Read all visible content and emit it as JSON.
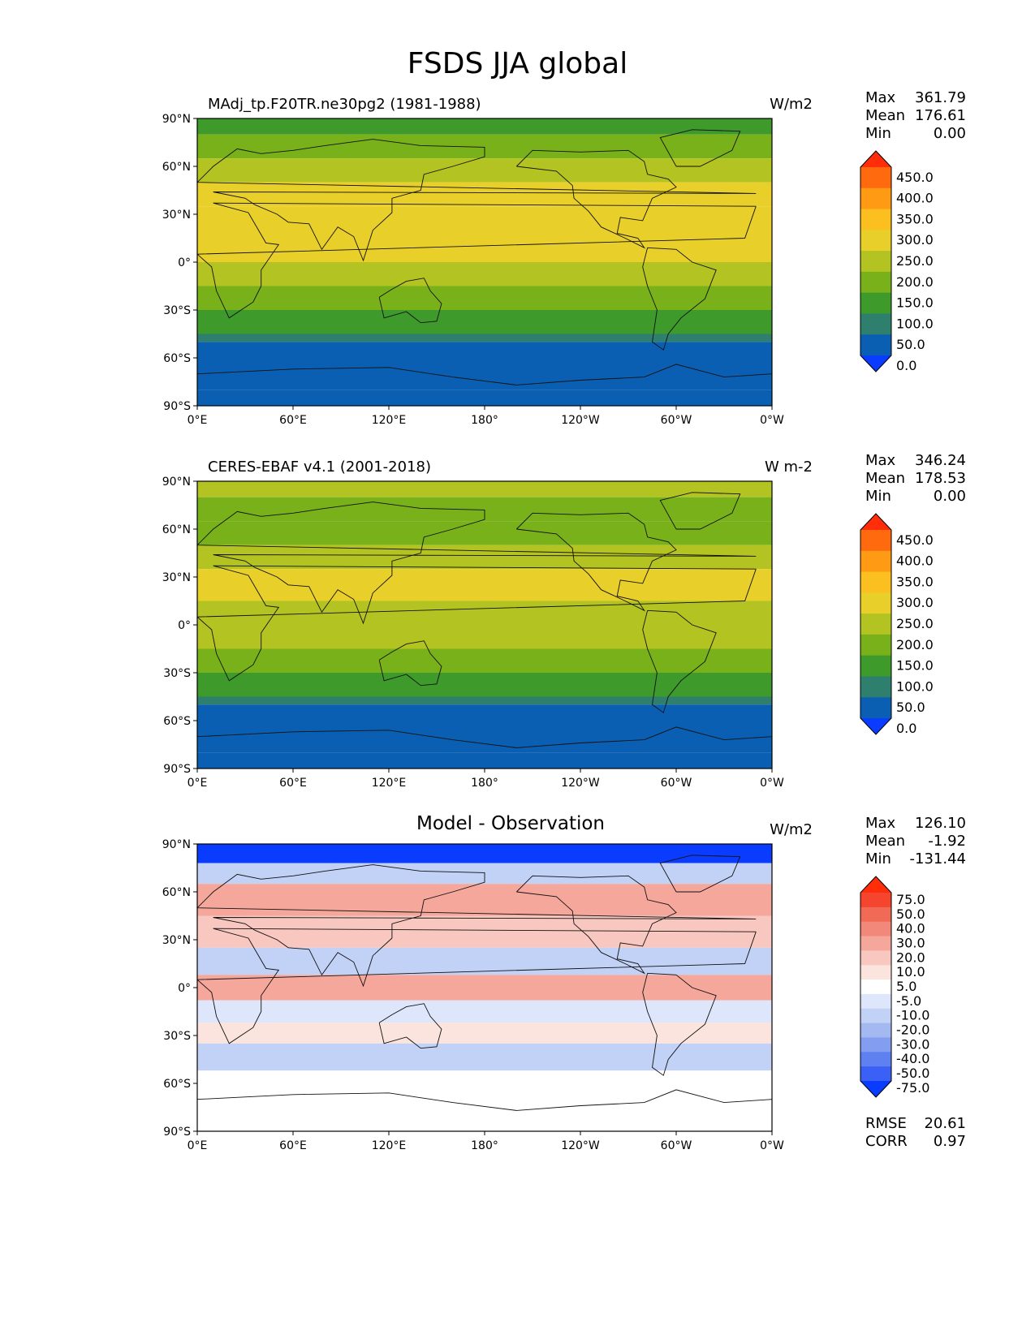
{
  "title": "FSDS JJA global",
  "axes": {
    "lat_ticks": [
      "90°N",
      "60°N",
      "30°N",
      "0°",
      "30°S",
      "60°S",
      "90°S"
    ],
    "lon_ticks": [
      "0°E",
      "60°E",
      "120°E",
      "180°",
      "120°W",
      "60°W",
      "0°W"
    ]
  },
  "panels": [
    {
      "left_title": "MAdj_tp.F20TR.ne30pg2 (1981-1988)",
      "center_title": "",
      "units": "W/m2",
      "stats": [
        {
          "label": "Max",
          "value": "361.79"
        },
        {
          "label": "Mean",
          "value": "176.61"
        },
        {
          "label": "Min",
          "value": "0.00"
        }
      ],
      "colorbar": {
        "levels": [
          "450.0",
          "400.0",
          "350.0",
          "300.0",
          "250.0",
          "200.0",
          "150.0",
          "100.0",
          "50.0",
          "0.0"
        ],
        "colors": [
          "#ff2d0a",
          "#ff6a0e",
          "#ff9a14",
          "#fbbf1f",
          "#e9cf2a",
          "#b3c321",
          "#78b11a",
          "#3e9a2a",
          "#2e7f6e",
          "#0a5fb2",
          "#0a3cff"
        ]
      }
    },
    {
      "left_title": "CERES-EBAF v4.1 (2001-2018)",
      "center_title": "",
      "units": "W m-2",
      "stats": [
        {
          "label": "Max",
          "value": "346.24"
        },
        {
          "label": "Mean",
          "value": "178.53"
        },
        {
          "label": "Min",
          "value": "0.00"
        }
      ],
      "colorbar": {
        "levels": [
          "450.0",
          "400.0",
          "350.0",
          "300.0",
          "250.0",
          "200.0",
          "150.0",
          "100.0",
          "50.0",
          "0.0"
        ],
        "colors": [
          "#ff2d0a",
          "#ff6a0e",
          "#ff9a14",
          "#fbbf1f",
          "#e9cf2a",
          "#b3c321",
          "#78b11a",
          "#3e9a2a",
          "#2e7f6e",
          "#0a5fb2",
          "#0a3cff"
        ]
      }
    },
    {
      "left_title": "",
      "center_title": "Model - Observation",
      "units": "W/m2",
      "stats": [
        {
          "label": "Max",
          "value": "126.10"
        },
        {
          "label": "Mean",
          "value": "-1.92"
        },
        {
          "label": "Min",
          "value": "-131.44"
        }
      ],
      "colorbar": {
        "levels": [
          "75.0",
          "50.0",
          "40.0",
          "30.0",
          "20.0",
          "10.0",
          "5.0",
          "-5.0",
          "-10.0",
          "-20.0",
          "-30.0",
          "-40.0",
          "-50.0",
          "-75.0"
        ],
        "colors": [
          "#ff2d0a",
          "#f5452e",
          "#f06a55",
          "#f2887a",
          "#f5a79c",
          "#f8c7bf",
          "#fbe3de",
          "#ffffff",
          "#dde6fb",
          "#c2d1f6",
          "#a4b9f1",
          "#839ef0",
          "#5f80f0",
          "#3a60f5",
          "#0a3cff"
        ]
      },
      "bottom_stats": [
        {
          "label": "RMSE",
          "value": "20.61"
        },
        {
          "label": "CORR",
          "value": "0.97"
        }
      ]
    }
  ],
  "chart_data": [
    {
      "type": "heatmap",
      "title": "MAdj_tp.F20TR.ne30pg2 (1981-1988)",
      "units": "W/m2",
      "xlim": [
        0,
        360
      ],
      "ylim": [
        -90,
        90
      ],
      "x_ticks": [
        0,
        60,
        120,
        180,
        240,
        300,
        360
      ],
      "y_ticks": [
        90,
        60,
        30,
        0,
        -30,
        -60,
        -90
      ],
      "contour_levels": [
        0,
        50,
        100,
        150,
        200,
        250,
        300,
        350,
        400,
        450
      ],
      "stats": {
        "max": 361.79,
        "mean": 176.61,
        "min": 0.0
      },
      "zonal_bands": [
        {
          "lat": [
            80,
            90
          ],
          "value": 125
        },
        {
          "lat": [
            65,
            80
          ],
          "value": 175
        },
        {
          "lat": [
            50,
            65
          ],
          "value": 225
        },
        {
          "lat": [
            35,
            50
          ],
          "value": 270
        },
        {
          "lat": [
            15,
            35
          ],
          "value": 290
        },
        {
          "lat": [
            0,
            15
          ],
          "value": 260
        },
        {
          "lat": [
            -15,
            0
          ],
          "value": 220
        },
        {
          "lat": [
            -30,
            -15
          ],
          "value": 185
        },
        {
          "lat": [
            -45,
            -30
          ],
          "value": 135
        },
        {
          "lat": [
            -50,
            -45
          ],
          "value": 80
        },
        {
          "lat": [
            -80,
            -50
          ],
          "value": 30
        },
        {
          "lat": [
            -90,
            -80
          ],
          "value": 0
        }
      ]
    },
    {
      "type": "heatmap",
      "title": "CERES-EBAF v4.1 (2001-2018)",
      "units": "W m-2",
      "xlim": [
        0,
        360
      ],
      "ylim": [
        -90,
        90
      ],
      "x_ticks": [
        0,
        60,
        120,
        180,
        240,
        300,
        360
      ],
      "y_ticks": [
        90,
        60,
        30,
        0,
        -30,
        -60,
        -90
      ],
      "contour_levels": [
        0,
        50,
        100,
        150,
        200,
        250,
        300,
        350,
        400,
        450
      ],
      "stats": {
        "max": 346.24,
        "mean": 178.53,
        "min": 0.0
      },
      "zonal_bands": [
        {
          "lat": [
            80,
            90
          ],
          "value": 225
        },
        {
          "lat": [
            65,
            80
          ],
          "value": 180
        },
        {
          "lat": [
            50,
            65
          ],
          "value": 165
        },
        {
          "lat": [
            35,
            50
          ],
          "value": 230
        },
        {
          "lat": [
            15,
            35
          ],
          "value": 290
        },
        {
          "lat": [
            0,
            15
          ],
          "value": 240
        },
        {
          "lat": [
            -15,
            0
          ],
          "value": 210
        },
        {
          "lat": [
            -30,
            -15
          ],
          "value": 175
        },
        {
          "lat": [
            -45,
            -30
          ],
          "value": 125
        },
        {
          "lat": [
            -50,
            -45
          ],
          "value": 80
        },
        {
          "lat": [
            -80,
            -50
          ],
          "value": 30
        },
        {
          "lat": [
            -90,
            -80
          ],
          "value": 0
        }
      ]
    },
    {
      "type": "heatmap",
      "title": "Model - Observation",
      "units": "W/m2",
      "xlim": [
        0,
        360
      ],
      "ylim": [
        -90,
        90
      ],
      "x_ticks": [
        0,
        60,
        120,
        180,
        240,
        300,
        360
      ],
      "y_ticks": [
        90,
        60,
        30,
        0,
        -30,
        -60,
        -90
      ],
      "contour_levels": [
        -75,
        -50,
        -40,
        -30,
        -20,
        -10,
        -5,
        5,
        10,
        20,
        30,
        40,
        50,
        75
      ],
      "stats": {
        "max": 126.1,
        "mean": -1.92,
        "min": -131.44,
        "rmse": 20.61,
        "corr": 0.97
      },
      "zonal_bands": [
        {
          "lat": [
            78,
            90
          ],
          "value": -80
        },
        {
          "lat": [
            65,
            78
          ],
          "value": -20
        },
        {
          "lat": [
            45,
            65
          ],
          "value": 25
        },
        {
          "lat": [
            25,
            45
          ],
          "value": 15
        },
        {
          "lat": [
            8,
            25
          ],
          "value": -15
        },
        {
          "lat": [
            -8,
            8
          ],
          "value": 20
        },
        {
          "lat": [
            -22,
            -8
          ],
          "value": -8
        },
        {
          "lat": [
            -35,
            -22
          ],
          "value": 8
        },
        {
          "lat": [
            -52,
            -35
          ],
          "value": -15
        },
        {
          "lat": [
            -90,
            -52
          ],
          "value": 0
        }
      ]
    }
  ]
}
